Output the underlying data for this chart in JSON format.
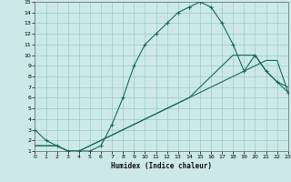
{
  "xlabel": "Humidex (Indice chaleur)",
  "background_color": "#cce8e8",
  "grid_color": "#99cccc",
  "line_color": "#1a6b5a",
  "xlim": [
    0,
    23
  ],
  "ylim": [
    1,
    15
  ],
  "xtick_labels": [
    "0",
    "1",
    "2",
    "3",
    "4",
    "5",
    "6",
    "7",
    "8",
    "9",
    "10",
    "11",
    "12",
    "13",
    "14",
    "15",
    "16",
    "17",
    "18",
    "19",
    "20",
    "21",
    "22",
    "23"
  ],
  "xticks": [
    0,
    1,
    2,
    3,
    4,
    5,
    6,
    7,
    8,
    9,
    10,
    11,
    12,
    13,
    14,
    15,
    16,
    17,
    18,
    19,
    20,
    21,
    22,
    23
  ],
  "yticks": [
    1,
    2,
    3,
    4,
    5,
    6,
    7,
    8,
    9,
    10,
    11,
    12,
    13,
    14,
    15
  ],
  "curve1_x": [
    0,
    1,
    2,
    3,
    4,
    5,
    6,
    7,
    8,
    9,
    10,
    11,
    12,
    13,
    14,
    14,
    15,
    15,
    16,
    17,
    18,
    19,
    20,
    21,
    22,
    23
  ],
  "curve1_y": [
    3,
    2,
    1.5,
    1,
    1,
    1,
    1.5,
    3.5,
    6,
    9,
    11,
    12,
    13,
    14,
    14.5,
    14.5,
    15,
    15,
    14.5,
    13,
    11,
    8.5,
    10,
    8.5,
    7.5,
    6.5
  ],
  "curve2_x": [
    0,
    2,
    3,
    4,
    5,
    6,
    7,
    8,
    9,
    10,
    11,
    12,
    13,
    14,
    15,
    16,
    17,
    18,
    19,
    20,
    21,
    22,
    23
  ],
  "curve2_y": [
    1.5,
    1.5,
    1,
    1,
    1.5,
    2,
    2.5,
    3,
    3.5,
    4,
    4.5,
    5,
    5.5,
    6,
    6.5,
    7,
    7.5,
    8,
    8.5,
    9,
    9.5,
    9.5,
    6.5
  ],
  "curve3_x": [
    0,
    2,
    3,
    4,
    5,
    6,
    7,
    8,
    9,
    10,
    11,
    12,
    13,
    14,
    15,
    16,
    17,
    18,
    19,
    20,
    21,
    22,
    23
  ],
  "curve3_y": [
    1.5,
    1.5,
    1,
    1,
    1.5,
    2,
    2.5,
    3,
    3.5,
    4,
    4.5,
    5,
    5.5,
    6,
    7,
    8,
    9,
    10,
    10,
    10,
    8.5,
    7.5,
    7
  ]
}
